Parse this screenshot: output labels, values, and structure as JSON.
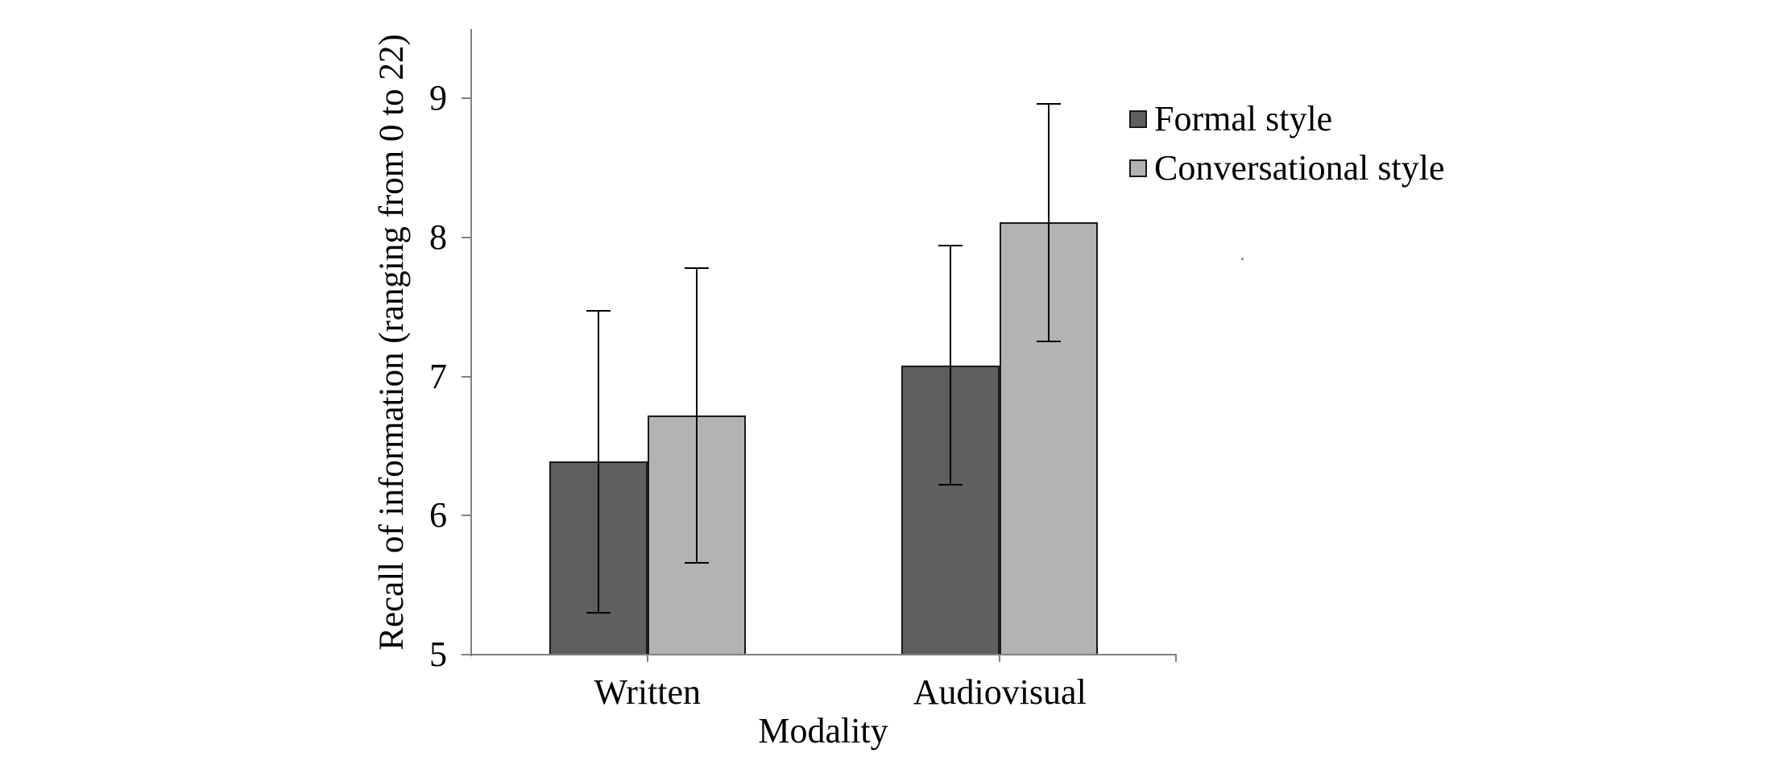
{
  "chart_data": {
    "type": "bar",
    "title": "",
    "categories": [
      "Written",
      "Audiovisual"
    ],
    "series": [
      {
        "name": "Formal style",
        "color": "#5f5f5f",
        "values": [
          6.39,
          7.08
        ],
        "error_upper": [
          7.47,
          7.94
        ],
        "error_lower": [
          5.3,
          6.22
        ]
      },
      {
        "name": "Conversational style",
        "color": "#b3b3b3",
        "values": [
          6.72,
          8.11
        ],
        "error_upper": [
          7.78,
          8.96
        ],
        "error_lower": [
          5.66,
          7.25
        ]
      }
    ],
    "xlabel": "Modality",
    "ylabel": "Recall of information (ranging from 0 to 22)",
    "yticks": [
      "5",
      "6",
      "7",
      "8",
      "9"
    ],
    "ylim": [
      5,
      9.5
    ],
    "grid": false,
    "legend_position": "upper right",
    "bar_outline_color": "#1a1a1a",
    "axis_color": "#808080",
    "error_bar_color": "#000000",
    "background_color": "#ffffff"
  }
}
